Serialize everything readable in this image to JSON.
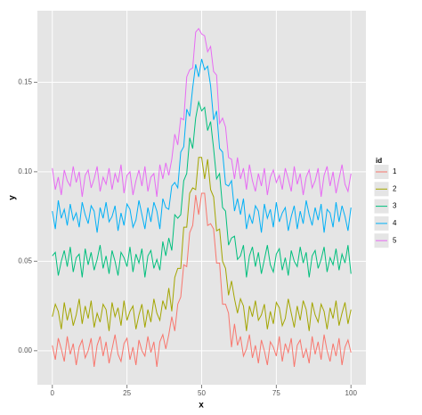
{
  "chart_data": {
    "type": "line",
    "x_label": "x",
    "y_label": "y",
    "legend_title": "id",
    "legend_position": "right",
    "grid": true,
    "x": [
      0,
      1,
      2,
      3,
      4,
      5,
      6,
      7,
      8,
      9,
      10,
      11,
      12,
      13,
      14,
      15,
      16,
      17,
      18,
      19,
      20,
      21,
      22,
      23,
      24,
      25,
      26,
      27,
      28,
      29,
      30,
      31,
      32,
      33,
      34,
      35,
      36,
      37,
      38,
      39,
      40,
      41,
      42,
      43,
      44,
      45,
      46,
      47,
      48,
      49,
      50,
      51,
      52,
      53,
      54,
      55,
      56,
      57,
      58,
      59,
      60,
      61,
      62,
      63,
      64,
      65,
      66,
      67,
      68,
      69,
      70,
      71,
      72,
      73,
      74,
      75,
      76,
      77,
      78,
      79,
      80,
      81,
      82,
      83,
      84,
      85,
      86,
      87,
      88,
      89,
      90,
      91,
      92,
      93,
      94,
      95,
      96,
      97,
      98,
      99,
      100
    ],
    "xlim": [
      -5,
      105
    ],
    "xticks": [
      0,
      25,
      50,
      75,
      100
    ],
    "ylim": [
      -0.019,
      0.19
    ],
    "yticks": [
      {
        "value": 0,
        "label": "0.00"
      },
      {
        "value": 0.05,
        "label": "0.05"
      },
      {
        "value": 0.1,
        "label": "0.10"
      },
      {
        "value": 0.15,
        "label": "0.15"
      }
    ],
    "series": [
      {
        "name": "1",
        "color": "#F8766D",
        "values": [
          0.003,
          -0.005,
          0.007,
          0.001,
          -0.006,
          0.008,
          -0.002,
          0.004,
          -0.008,
          0.002,
          0.006,
          -0.004,
          0,
          0.007,
          -0.009,
          0.003,
          0.008,
          -0.003,
          0.005,
          -0.007,
          0.001,
          0.009,
          -0.002,
          -0.006,
          0.004,
          0.007,
          -0.005,
          0.002,
          -0.008,
          0.006,
          0,
          -0.003,
          0.008,
          -0.001,
          0.005,
          -0.009,
          0.005,
          0.009,
          0.001,
          0.009,
          0.019,
          0.011,
          0.026,
          0.03,
          0.048,
          0.047,
          0.066,
          0.07,
          0.087,
          0.076,
          0.088,
          0.088,
          0.07,
          0.071,
          0.068,
          0.049,
          0.049,
          0.026,
          0.026,
          0.021,
          0.002,
          0.015,
          0.003,
          0.008,
          -0.003,
          0.001,
          0.009,
          -0.004,
          0.003,
          -0.007,
          0.006,
          0,
          -0.008,
          0.005,
          0.002,
          -0.003,
          0.008,
          -0.006,
          0.004,
          -0.001,
          0.007,
          -0.009,
          0.003,
          0.006,
          -0.004,
          0.001,
          -0.007,
          0.008,
          -0.002,
          0.005,
          -0.005,
          0.009,
          0,
          -0.006,
          0.004,
          -0.003,
          0.007,
          -0.008,
          0.002,
          0.006,
          -0.001
        ]
      },
      {
        "name": "2",
        "color": "#A3A500",
        "values": [
          0.019,
          0.026,
          0.022,
          0.012,
          0.027,
          0.017,
          0.024,
          0.014,
          0.02,
          0.029,
          0.015,
          0.025,
          0.018,
          0.028,
          0.013,
          0.021,
          0.016,
          0.026,
          0.023,
          0.011,
          0.027,
          0.019,
          0.024,
          0.014,
          0.028,
          0.017,
          0.022,
          0.025,
          0.012,
          0.02,
          0.026,
          0.013,
          0.023,
          0.016,
          0.029,
          0.021,
          0.017,
          0.028,
          0.023,
          0.035,
          0.022,
          0.041,
          0.046,
          0.046,
          0.069,
          0.069,
          0.088,
          0.091,
          0.09,
          0.108,
          0.108,
          0.096,
          0.107,
          0.09,
          0.086,
          0.067,
          0.068,
          0.05,
          0.046,
          0.031,
          0.039,
          0.029,
          0.021,
          0.029,
          0.025,
          0.011,
          0.025,
          0.019,
          0.028,
          0.017,
          0.02,
          0.026,
          0.012,
          0.022,
          0.015,
          0.027,
          0.024,
          0.014,
          0.018,
          0.029,
          0.021,
          0.013,
          0.025,
          0.017,
          0.028,
          0.023,
          0.011,
          0.027,
          0.02,
          0.016,
          0.026,
          0.022,
          0.012,
          0.024,
          0.018,
          0.028,
          0.014,
          0.021,
          0.027,
          0.015,
          0.023
        ]
      },
      {
        "name": "3",
        "color": "#00BF7D",
        "values": [
          0.053,
          0.055,
          0.042,
          0.05,
          0.056,
          0.047,
          0.058,
          0.044,
          0.052,
          0.054,
          0.041,
          0.057,
          0.048,
          0.055,
          0.045,
          0.051,
          0.059,
          0.046,
          0.053,
          0.043,
          0.056,
          0.05,
          0.042,
          0.055,
          0.052,
          0.047,
          0.058,
          0.044,
          0.054,
          0.049,
          0.057,
          0.041,
          0.053,
          0.056,
          0.046,
          0.051,
          0.045,
          0.061,
          0.053,
          0.063,
          0.056,
          0.076,
          0.074,
          0.076,
          0.095,
          0.099,
          0.119,
          0.113,
          0.13,
          0.139,
          0.134,
          0.136,
          0.123,
          0.128,
          0.113,
          0.096,
          0.099,
          0.08,
          0.078,
          0.059,
          0.063,
          0.064,
          0.051,
          0.053,
          0.059,
          0.041,
          0.053,
          0.058,
          0.047,
          0.055,
          0.043,
          0.051,
          0.059,
          0.048,
          0.044,
          0.054,
          0.057,
          0.045,
          0.052,
          0.042,
          0.056,
          0.05,
          0.047,
          0.058,
          0.049,
          0.055,
          0.041,
          0.053,
          0.056,
          0.046,
          0.051,
          0.058,
          0.044,
          0.052,
          0.048,
          0.057,
          0.045,
          0.054,
          0.049,
          0.059,
          0.043
        ]
      },
      {
        "name": "4",
        "color": "#00B0F6",
        "values": [
          0.078,
          0.068,
          0.084,
          0.074,
          0.079,
          0.07,
          0.082,
          0.073,
          0.077,
          0.069,
          0.083,
          0.076,
          0.071,
          0.081,
          0.078,
          0.066,
          0.08,
          0.074,
          0.083,
          0.072,
          0.075,
          0.081,
          0.067,
          0.077,
          0.07,
          0.082,
          0.079,
          0.069,
          0.073,
          0.084,
          0.076,
          0.068,
          0.08,
          0.072,
          0.083,
          0.078,
          0.068,
          0.085,
          0.08,
          0.079,
          0.092,
          0.094,
          0.091,
          0.111,
          0.114,
          0.135,
          0.131,
          0.147,
          0.16,
          0.153,
          0.163,
          0.157,
          0.159,
          0.148,
          0.129,
          0.134,
          0.113,
          0.111,
          0.093,
          0.092,
          0.095,
          0.078,
          0.085,
          0.076,
          0.085,
          0.068,
          0.076,
          0.071,
          0.081,
          0.078,
          0.066,
          0.082,
          0.074,
          0.079,
          0.069,
          0.083,
          0.072,
          0.077,
          0.08,
          0.067,
          0.075,
          0.081,
          0.068,
          0.078,
          0.071,
          0.084,
          0.076,
          0.07,
          0.08,
          0.073,
          0.082,
          0.066,
          0.079,
          0.077,
          0.069,
          0.083,
          0.072,
          0.081,
          0.075,
          0.067,
          0.08
        ]
      },
      {
        "name": "5",
        "color": "#E76BF3",
        "values": [
          0.102,
          0.09,
          0.097,
          0.087,
          0.101,
          0.095,
          0.092,
          0.103,
          0.094,
          0.1,
          0.086,
          0.098,
          0.101,
          0.091,
          0.096,
          0.103,
          0.089,
          0.097,
          0.093,
          0.102,
          0.09,
          0.099,
          0.094,
          0.104,
          0.088,
          0.098,
          0.1,
          0.087,
          0.095,
          0.101,
          0.092,
          0.103,
          0.089,
          0.097,
          0.099,
          0.086,
          0.104,
          0.096,
          0.105,
          0.098,
          0.107,
          0.121,
          0.115,
          0.13,
          0.129,
          0.153,
          0.157,
          0.158,
          0.178,
          0.18,
          0.177,
          0.176,
          0.167,
          0.17,
          0.156,
          0.154,
          0.127,
          0.13,
          0.125,
          0.108,
          0.107,
          0.096,
          0.108,
          0.096,
          0.102,
          0.09,
          0.104,
          0.095,
          0.089,
          0.099,
          0.092,
          0.102,
          0.087,
          0.097,
          0.101,
          0.094,
          0.098,
          0.09,
          0.102,
          0.096,
          0.089,
          0.103,
          0.093,
          0.099,
          0.087,
          0.097,
          0.101,
          0.091,
          0.095,
          0.102,
          0.086,
          0.098,
          0.103,
          0.092,
          0.1,
          0.088,
          0.096,
          0.104,
          0.093,
          0.089,
          0.099
        ]
      }
    ]
  }
}
